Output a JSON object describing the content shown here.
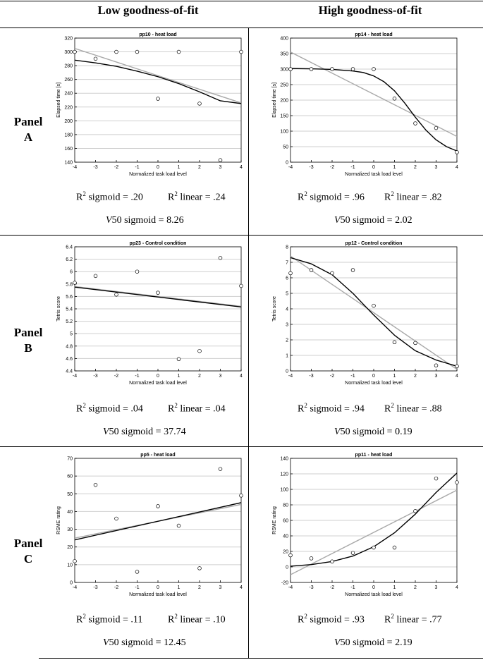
{
  "columns": [
    "Low goodness-of-fit",
    "High goodness-of-fit"
  ],
  "panels": [
    {
      "label": [
        "Panel",
        "A"
      ]
    },
    {
      "label": [
        "Panel",
        "B"
      ]
    },
    {
      "label": [
        "Panel",
        "C"
      ]
    }
  ],
  "stat_labels": {
    "r2_prefix": "R",
    "sigmoid_suffix": " sigmoid = ",
    "linear_suffix": " linear = ",
    "v50_letter": "V",
    "v50_suffix": "50 sigmoid = "
  },
  "stats": [
    {
      "r2_sigmoid": ".20",
      "r2_linear": ".24",
      "v50": "8.26"
    },
    {
      "r2_sigmoid": ".96",
      "r2_linear": ".82",
      "v50": "2.02"
    },
    {
      "r2_sigmoid": ".04",
      "r2_linear": ".04",
      "v50": "37.74"
    },
    {
      "r2_sigmoid": ".94",
      "r2_linear": ".88",
      "v50": "0.19"
    },
    {
      "r2_sigmoid": ".11",
      "r2_linear": ".10",
      "v50": "12.45"
    },
    {
      "r2_sigmoid": ".93",
      "r2_linear": ".77",
      "v50": "2.19"
    }
  ],
  "colors": {
    "sigmoid": "#000000",
    "linear": "#a9a9a9",
    "grid": "#cfcfcf"
  },
  "chart_data": [
    {
      "type": "scatter",
      "title": "pp10 - heat load",
      "xlabel": "Normalized task load level",
      "ylabel": "Elapsed time [s]",
      "xlim": [
        -4,
        4
      ],
      "ylim": [
        140,
        320
      ],
      "xticks": [
        -4,
        -3,
        -2,
        -1,
        0,
        1,
        2,
        3,
        4
      ],
      "yticks": [
        140,
        160,
        180,
        200,
        220,
        240,
        260,
        280,
        300,
        320
      ],
      "grid": true,
      "points": {
        "x": [
          -4,
          -3,
          -2,
          -1,
          0,
          1,
          2,
          3,
          4
        ],
        "y": [
          300,
          290,
          300,
          300,
          232,
          300,
          225,
          143,
          300
        ]
      },
      "fit_sigmoid": {
        "x": [
          -4,
          -3,
          -2,
          -1,
          0,
          1,
          2,
          3,
          4
        ],
        "y": [
          288,
          284,
          279,
          272,
          264,
          254,
          242,
          229,
          225
        ]
      },
      "fit_linear": {
        "x": [
          -4,
          4
        ],
        "y": [
          305,
          226
        ]
      }
    },
    {
      "type": "scatter",
      "title": "pp14 - heat load",
      "xlabel": "Normalized task load level",
      "ylabel": "Elapsed time [s]",
      "xlim": [
        -4,
        4
      ],
      "ylim": [
        0,
        400
      ],
      "xticks": [
        -4,
        -3,
        -2,
        -1,
        0,
        1,
        2,
        3,
        4
      ],
      "yticks": [
        0,
        50,
        100,
        150,
        200,
        250,
        300,
        350,
        400
      ],
      "grid": true,
      "points": {
        "x": [
          -4,
          -3,
          -2,
          -1,
          0,
          1,
          2,
          3,
          4
        ],
        "y": [
          300,
          300,
          300,
          300,
          300,
          205,
          125,
          110,
          32
        ]
      },
      "fit_sigmoid": {
        "x": [
          -4,
          -3,
          -2,
          -1,
          -0.5,
          0,
          0.5,
          1,
          1.5,
          2,
          2.5,
          3,
          3.5,
          4
        ],
        "y": [
          302,
          301,
          299,
          294,
          289,
          278,
          259,
          230,
          190,
          145,
          104,
          72,
          50,
          36
        ]
      },
      "fit_linear": {
        "x": [
          -4,
          4
        ],
        "y": [
          355,
          83
        ]
      }
    },
    {
      "type": "scatter",
      "title": "pp23 - Control condition",
      "xlabel": "Normalized task load level",
      "ylabel": "Tetris score",
      "xlim": [
        -4,
        4
      ],
      "ylim": [
        4.4,
        6.4
      ],
      "xticks": [
        -4,
        -3,
        -2,
        -1,
        0,
        1,
        2,
        3,
        4
      ],
      "yticks": [
        4.4,
        4.6,
        4.8,
        5,
        5.2,
        5.4,
        5.6,
        5.8,
        6,
        6.2,
        6.4
      ],
      "grid": true,
      "points": {
        "x": [
          -4,
          -3,
          -2,
          -1,
          0,
          1,
          2,
          3,
          4
        ],
        "y": [
          5.82,
          5.93,
          5.63,
          6.0,
          5.66,
          4.59,
          4.72,
          6.22,
          5.77
        ]
      },
      "fit_sigmoid": {
        "x": [
          -4,
          4
        ],
        "y": [
          5.75,
          5.43
        ]
      },
      "fit_linear": {
        "x": [
          -4,
          4
        ],
        "y": [
          5.76,
          5.44
        ]
      }
    },
    {
      "type": "scatter",
      "title": "pp12 - Control condition",
      "xlabel": "Normalized task load level",
      "ylabel": "Tetris score",
      "xlim": [
        -4,
        4
      ],
      "ylim": [
        0,
        8
      ],
      "xticks": [
        -4,
        -3,
        -2,
        -1,
        0,
        1,
        2,
        3,
        4
      ],
      "yticks": [
        0,
        1,
        2,
        3,
        4,
        5,
        6,
        7,
        8
      ],
      "grid": true,
      "points": {
        "x": [
          -4,
          -3,
          -2,
          -1,
          0,
          1,
          2,
          3,
          4
        ],
        "y": [
          6.3,
          6.5,
          6.3,
          6.5,
          4.2,
          1.85,
          1.8,
          0.35,
          0.3
        ]
      },
      "fit_sigmoid": {
        "x": [
          -4,
          -3,
          -2,
          -1,
          0,
          1,
          2,
          3,
          4
        ],
        "y": [
          7.3,
          6.9,
          6.2,
          5.0,
          3.6,
          2.3,
          1.3,
          0.7,
          0.3
        ]
      },
      "fit_linear": {
        "x": [
          -4,
          4
        ],
        "y": [
          7.4,
          0.1
        ]
      }
    },
    {
      "type": "scatter",
      "title": "pp5 - heat load",
      "xlabel": "Normalized task load level",
      "ylabel": "RSME rating",
      "xlim": [
        -4,
        4
      ],
      "ylim": [
        0,
        70
      ],
      "xticks": [
        -4,
        -3,
        -2,
        -1,
        0,
        1,
        2,
        3,
        4
      ],
      "yticks": [
        0,
        10,
        20,
        30,
        40,
        50,
        60,
        70
      ],
      "grid": true,
      "points": {
        "x": [
          -4,
          -3,
          -2,
          -1,
          0,
          1,
          2,
          3,
          4
        ],
        "y": [
          12,
          55,
          36,
          6,
          43,
          32,
          8,
          64,
          49
        ]
      },
      "fit_sigmoid": {
        "x": [
          -4,
          4
        ],
        "y": [
          24,
          45
        ]
      },
      "fit_linear": {
        "x": [
          -4,
          4
        ],
        "y": [
          25,
          44
        ]
      }
    },
    {
      "type": "scatter",
      "title": "pp11 - heat load",
      "xlabel": "Normalized task load level",
      "ylabel": "RSME rating",
      "xlim": [
        -4,
        4
      ],
      "ylim": [
        -20,
        140
      ],
      "xticks": [
        -4,
        -3,
        -2,
        -1,
        0,
        1,
        2,
        3,
        4
      ],
      "yticks": [
        -20,
        0,
        20,
        40,
        60,
        80,
        100,
        120,
        140
      ],
      "grid": true,
      "points": {
        "x": [
          -4,
          -3,
          -2,
          -1,
          0,
          1,
          2,
          3,
          4
        ],
        "y": [
          15,
          11,
          7,
          18,
          25,
          25,
          72,
          114,
          109
        ]
      },
      "fit_sigmoid": {
        "x": [
          -4,
          -3,
          -2,
          -1,
          0,
          1,
          2,
          3,
          4
        ],
        "y": [
          1,
          3,
          7,
          14,
          26,
          44,
          68,
          96,
          121
        ]
      },
      "fit_linear": {
        "x": [
          -4,
          4
        ],
        "y": [
          -10,
          99
        ]
      }
    }
  ]
}
